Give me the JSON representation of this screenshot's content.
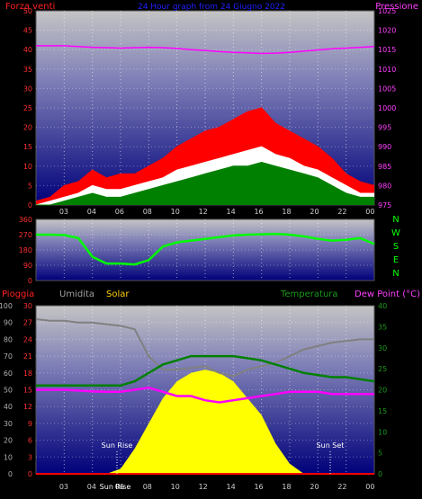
{
  "chart_data": [
    {
      "type": "line",
      "title": "24 Hour graph from 24 Giugno 2022",
      "left_axis_label": "Forza venti",
      "right_axis_label": "Pressione",
      "left_axis": {
        "min": 0,
        "max": 50,
        "ticks": [
          0,
          5,
          10,
          15,
          20,
          25,
          30,
          35,
          40,
          45,
          50
        ]
      },
      "right_axis": {
        "min": 975,
        "max": 1025,
        "ticks": [
          975,
          980,
          985,
          990,
          995,
          1000,
          1005,
          1010,
          1015,
          1020,
          1025
        ]
      },
      "x_tick_labels": [
        "03",
        "04",
        "06",
        "08",
        "10",
        "12",
        "14",
        "16",
        "18",
        "20",
        "22",
        "00"
      ],
      "series": [
        {
          "color": "#ff0000",
          "x": [
            0,
            1,
            2,
            3,
            4,
            5,
            6,
            7,
            8,
            9,
            10,
            11,
            12,
            13,
            14,
            15,
            16,
            17,
            18,
            19,
            20,
            21,
            22,
            23,
            24
          ],
          "values": [
            1,
            2,
            5,
            6,
            9,
            7,
            8,
            8,
            10,
            12,
            15,
            17,
            19,
            20,
            22,
            24,
            25,
            21,
            19,
            17,
            15,
            12,
            8,
            6,
            5
          ]
        },
        {
          "color": "#ffffff",
          "x": [
            0,
            1,
            2,
            3,
            4,
            5,
            6,
            7,
            8,
            9,
            10,
            11,
            12,
            13,
            14,
            15,
            16,
            17,
            18,
            19,
            20,
            21,
            22,
            23,
            24
          ],
          "values": [
            0,
            1,
            2,
            3,
            5,
            4,
            4,
            5,
            6,
            7,
            9,
            10,
            11,
            12,
            13,
            14,
            15,
            13,
            12,
            10,
            9,
            7,
            5,
            3,
            3
          ]
        },
        {
          "color": "#008000",
          "x": [
            0,
            1,
            2,
            3,
            4,
            5,
            6,
            7,
            8,
            9,
            10,
            11,
            12,
            13,
            14,
            15,
            16,
            17,
            18,
            19,
            20,
            21,
            22,
            23,
            24
          ],
          "values": [
            0,
            0,
            1,
            2,
            3,
            2,
            2,
            3,
            4,
            5,
            6,
            7,
            8,
            9,
            10,
            10,
            11,
            10,
            9,
            8,
            7,
            5,
            3,
            2,
            2
          ]
        },
        {
          "color": "#ff00ff",
          "axis": "right",
          "x": [
            0,
            1,
            2,
            3,
            4,
            5,
            6,
            7,
            8,
            9,
            10,
            11,
            12,
            13,
            14,
            15,
            16,
            17,
            18,
            19,
            20,
            21,
            22,
            23,
            24
          ],
          "values": [
            1016,
            1016,
            1016,
            1015.8,
            1015.6,
            1015.5,
            1015.4,
            1015.5,
            1015.6,
            1015.5,
            1015.3,
            1015,
            1014.8,
            1014.5,
            1014.3,
            1014.2,
            1014,
            1014.1,
            1014.3,
            1014.6,
            1014.9,
            1015.2,
            1015.4,
            1015.6,
            1015.8
          ]
        }
      ]
    },
    {
      "type": "line",
      "left_axis": {
        "min": 0,
        "max": 360,
        "ticks": [
          0,
          90,
          180,
          270,
          360
        ]
      },
      "compass_labels": [
        "N",
        "W",
        "S",
        "E",
        "N"
      ],
      "series": [
        {
          "color": "#00ff00",
          "x": [
            0,
            1,
            2,
            3,
            4,
            5,
            6,
            7,
            8,
            9,
            10,
            11,
            12,
            13,
            14,
            15,
            16,
            17,
            18,
            19,
            20,
            21,
            22,
            23,
            24
          ],
          "values": [
            270,
            270,
            268,
            250,
            140,
            100,
            100,
            95,
            120,
            200,
            225,
            235,
            245,
            255,
            265,
            270,
            272,
            275,
            270,
            260,
            245,
            235,
            240,
            250,
            215
          ]
        }
      ]
    },
    {
      "type": "area",
      "legend_left": [
        "Pioggia",
        "Umidita",
        "Solar"
      ],
      "legend_right": [
        "Temperatura",
        "Dew Point (°C)"
      ],
      "outer_axis": {
        "min": 0,
        "max": 100,
        "ticks": [
          0,
          10,
          20,
          30,
          40,
          50,
          60,
          70,
          80,
          90,
          100
        ]
      },
      "inner_axis": {
        "min": 0,
        "max": 30,
        "ticks": [
          0,
          3,
          6,
          9,
          12,
          15,
          18,
          21,
          24,
          27,
          30
        ]
      },
      "right_axis": {
        "min": 0,
        "max": 40,
        "ticks": [
          0,
          5,
          10,
          15,
          20,
          25,
          30,
          35,
          40
        ]
      },
      "x_tick_labels": [
        "03",
        "04",
        "06",
        "08",
        "10",
        "12",
        "14",
        "16",
        "18",
        "20",
        "22",
        "00"
      ],
      "annotations": [
        "Sun Rise",
        "Sun Set",
        "Sun Rise"
      ],
      "series": [
        {
          "name": "Umidita",
          "color": "#808080",
          "x": [
            0,
            1,
            2,
            3,
            4,
            5,
            6,
            7,
            8,
            9,
            10,
            11,
            12,
            13,
            14,
            15,
            16,
            17,
            18,
            19,
            20,
            21,
            22,
            23,
            24
          ],
          "values": [
            92,
            91,
            91,
            90,
            90,
            89,
            88,
            86,
            70,
            62,
            62,
            63,
            64,
            60,
            58,
            62,
            64,
            66,
            70,
            74,
            76,
            78,
            79,
            80,
            80
          ]
        },
        {
          "name": "Solar",
          "color": "#ffff00",
          "x": [
            0,
            1,
            2,
            3,
            4,
            5,
            6,
            7,
            8,
            9,
            10,
            11,
            12,
            13,
            14,
            15,
            16,
            17,
            18,
            19,
            20,
            21,
            22,
            23,
            24
          ],
          "values": [
            0,
            0,
            0,
            0,
            0,
            0,
            3,
            15,
            30,
            45,
            55,
            60,
            62,
            60,
            55,
            45,
            35,
            18,
            6,
            0,
            0,
            0,
            0,
            0,
            0
          ]
        },
        {
          "name": "Temperatura",
          "color": "#008000",
          "x": [
            0,
            1,
            2,
            3,
            4,
            5,
            6,
            7,
            8,
            9,
            10,
            11,
            12,
            13,
            14,
            15,
            16,
            17,
            18,
            19,
            20,
            21,
            22,
            23,
            24
          ],
          "values": [
            21,
            21,
            21,
            21,
            21,
            21,
            21,
            22,
            24,
            26,
            27,
            28,
            28,
            28,
            28,
            27.5,
            27,
            26,
            25,
            24,
            23.5,
            23,
            23,
            22.5,
            22
          ]
        },
        {
          "name": "Dew Point",
          "color": "#ff00ff",
          "x": [
            0,
            1,
            2,
            3,
            4,
            5,
            6,
            7,
            8,
            9,
            10,
            11,
            12,
            13,
            14,
            15,
            16,
            17,
            18,
            19,
            20,
            21,
            22,
            23,
            24
          ],
          "values": [
            20,
            20,
            20,
            19.8,
            19.6,
            19.5,
            19.5,
            20,
            20.5,
            19.5,
            18.5,
            18.5,
            17.5,
            17,
            17.5,
            18,
            18.5,
            19,
            19.5,
            19.5,
            19.5,
            19,
            19,
            19,
            19
          ]
        },
        {
          "name": "Pioggia",
          "color": "#ff0000",
          "x": [
            0,
            24
          ],
          "values": [
            0,
            0
          ]
        }
      ]
    }
  ]
}
